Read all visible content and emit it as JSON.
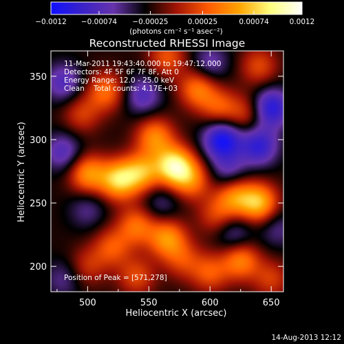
{
  "chart_data": {
    "type": "heatmap",
    "title": "Reconstructed RHESSI Image",
    "xlabel": "Heliocentric X (arcsec)",
    "ylabel": "Heliocentric Y (arcsec)",
    "xlim": [
      470,
      660
    ],
    "ylim": [
      180,
      370
    ],
    "xticks": [
      500,
      550,
      600,
      650
    ],
    "yticks": [
      200,
      250,
      300,
      350
    ],
    "colorbar": {
      "range": [
        -0.0012,
        0.0012
      ],
      "ticks": [
        "-0.0012",
        "-0.00074",
        "-0.00025",
        "0.00025",
        "0.00074",
        "0.0012"
      ],
      "unit": "(photons cm⁻² s⁻¹ asec⁻²)",
      "colormap": [
        "#1010ff",
        "#3a22c8",
        "#6633aa",
        "#000000",
        "#a21405",
        "#ff5a00",
        "#ffa400",
        "#ffff80",
        "#ffffff"
      ]
    },
    "annotations": [
      "11-Mar-2011 19:43:40.000 to 19:47:12.000",
      "Detectors: 4F 5F 6F 7F 8F, Att 0",
      "Energy Range: 12.0 - 25.0 keV",
      "Clean    Total counts: 4.17E+03"
    ],
    "peak_label": "Position of Peak = [571,278]",
    "peak": [
      571,
      278
    ],
    "sources": [
      {
        "x": 571,
        "y": 279,
        "value": 0.00115
      },
      {
        "x": 544,
        "y": 274,
        "value": 0.0008
      },
      {
        "x": 525,
        "y": 268,
        "value": 0.00095
      },
      {
        "x": 500,
        "y": 273,
        "value": 0.00075
      },
      {
        "x": 555,
        "y": 302,
        "value": 0.0007
      },
      {
        "x": 585,
        "y": 268,
        "value": 0.0006
      },
      {
        "x": 540,
        "y": 232,
        "value": 0.0006
      },
      {
        "x": 565,
        "y": 222,
        "value": 0.00075
      },
      {
        "x": 520,
        "y": 215,
        "value": 0.0005
      },
      {
        "x": 578,
        "y": 205,
        "value": 0.0004
      },
      {
        "x": 540,
        "y": 192,
        "value": 0.00045
      },
      {
        "x": 500,
        "y": 200,
        "value": 0.00035
      },
      {
        "x": 515,
        "y": 338,
        "value": 0.0006
      },
      {
        "x": 495,
        "y": 320,
        "value": 0.0004
      },
      {
        "x": 590,
        "y": 340,
        "value": 0.00065
      },
      {
        "x": 565,
        "y": 365,
        "value": 0.0005
      },
      {
        "x": 608,
        "y": 325,
        "value": 0.0005
      },
      {
        "x": 630,
        "y": 320,
        "value": 0.0004
      },
      {
        "x": 640,
        "y": 358,
        "value": 0.00045
      },
      {
        "x": 640,
        "y": 250,
        "value": 0.0009
      },
      {
        "x": 620,
        "y": 255,
        "value": 0.0007
      },
      {
        "x": 625,
        "y": 205,
        "value": 0.0007
      },
      {
        "x": 600,
        "y": 195,
        "value": 0.0005
      },
      {
        "x": 650,
        "y": 190,
        "value": 0.0004
      },
      {
        "x": 605,
        "y": 240,
        "value": 0.0004
      },
      {
        "x": 615,
        "y": 275,
        "value": -0.0004
      },
      {
        "x": 610,
        "y": 300,
        "value": -0.0009
      },
      {
        "x": 640,
        "y": 295,
        "value": -0.0007
      },
      {
        "x": 650,
        "y": 325,
        "value": -0.0008
      },
      {
        "x": 620,
        "y": 225,
        "value": -0.0004
      },
      {
        "x": 480,
        "y": 290,
        "value": -0.0005
      },
      {
        "x": 480,
        "y": 345,
        "value": -0.0005
      },
      {
        "x": 545,
        "y": 335,
        "value": -0.0005
      },
      {
        "x": 560,
        "y": 250,
        "value": -0.0003
      },
      {
        "x": 500,
        "y": 245,
        "value": -0.0003
      },
      {
        "x": 655,
        "y": 230,
        "value": -0.0003
      },
      {
        "x": 600,
        "y": 360,
        "value": -0.0004
      },
      {
        "x": 480,
        "y": 190,
        "value": -0.0003
      }
    ]
  },
  "footer": {
    "date": "14-Aug-2013 12:12"
  }
}
